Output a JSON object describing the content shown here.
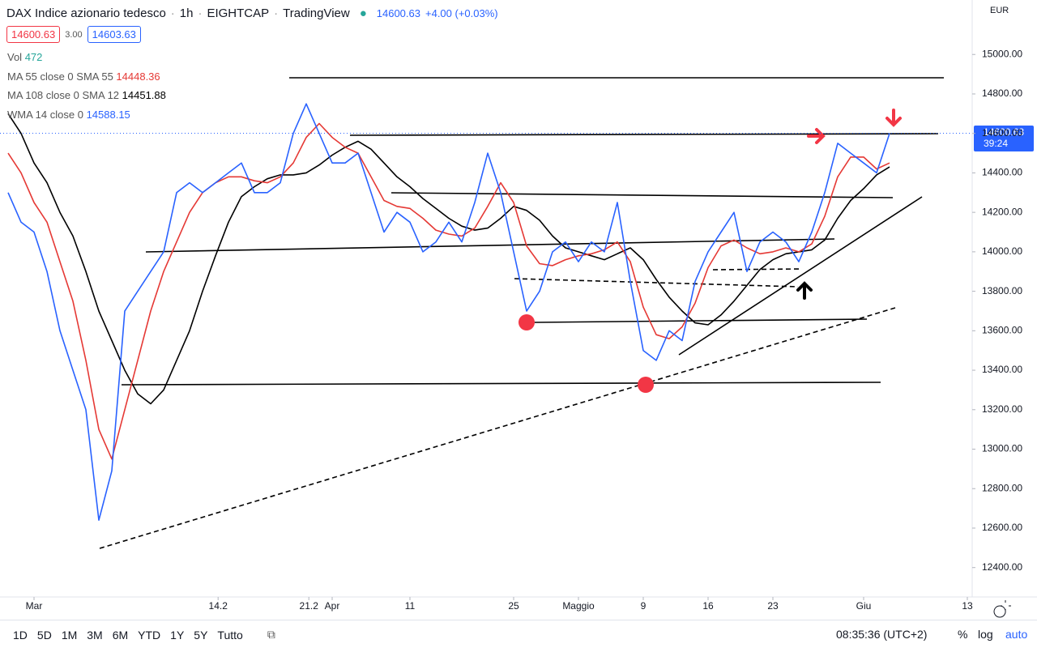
{
  "header": {
    "symbol": "DAX Indice azionario tedesco",
    "interval": "1h",
    "exchange": "EIGHTCAP",
    "source": "TradingView",
    "last": "14600.63",
    "change": "+4.00 (+0.03%)",
    "bid": "14600.63",
    "spread": "3.00",
    "ask": "14603.63",
    "currency": "EUR",
    "price_label": "14600.63",
    "countdown": "39:24"
  },
  "indicators": {
    "volume": {
      "name": "Vol",
      "last": "472"
    }
  },
  "toolbar": {
    "ranges": [
      "1D",
      "5D",
      "1M",
      "3M",
      "6M",
      "YTD",
      "1Y",
      "5Y",
      "Tutto"
    ],
    "clock": "08:35:36 (UTC+2)",
    "percent": "%",
    "log": "log",
    "auto": "auto"
  },
  "chart_data": {
    "type": "line",
    "x": [
      -2,
      -1,
      0,
      1,
      2,
      3,
      4,
      5,
      6,
      7,
      8,
      9,
      10,
      11,
      12,
      13,
      14,
      15,
      16,
      17,
      18,
      19,
      20,
      21,
      22,
      23,
      24,
      25,
      26,
      27,
      28,
      29,
      30,
      31,
      32,
      33,
      34,
      35,
      36,
      37,
      38,
      39,
      40,
      41,
      42,
      43,
      44,
      45,
      46,
      47,
      48,
      49,
      50,
      51,
      52,
      53,
      54,
      55,
      56,
      57,
      58,
      59,
      60,
      61,
      62,
      63,
      64,
      65,
      66
    ],
    "xlim": [
      -2.625,
      72.375
    ],
    "xticks": [
      {
        "value": 0,
        "label": "Mar"
      },
      14.2,
      21.2,
      {
        "value": 23,
        "label": "Apr"
      },
      {
        "value": 29,
        "label": "11"
      },
      {
        "value": 37,
        "label": "25"
      },
      {
        "value": 42,
        "label": "Maggio"
      },
      {
        "value": 47,
        "label": "9"
      },
      {
        "value": 52,
        "label": "16"
      },
      {
        "value": 57,
        "label": "23"
      },
      {
        "value": 64,
        "label": "Giu"
      },
      {
        "value": 72,
        "label": "13"
      }
    ],
    "ylim": [
      12251,
      15276
    ],
    "yticks": [
      {
        "value": 12400,
        "label": "12400.00"
      },
      {
        "value": 12600,
        "label": "12600.00"
      },
      {
        "value": 12800,
        "label": "12800.00"
      },
      {
        "value": 13000,
        "label": "13000.00"
      },
      {
        "value": 13200,
        "label": "13200.00"
      },
      {
        "value": 13400,
        "label": "13400.00"
      },
      {
        "value": 13600,
        "label": "13600.00"
      },
      {
        "value": 13800,
        "label": "13800.00"
      },
      {
        "value": 14000,
        "label": "14000.00"
      },
      {
        "value": 14200,
        "label": "14200.00"
      },
      {
        "value": 14400,
        "label": "14400.00"
      },
      {
        "value": 14600,
        "label": "14600.00"
      },
      {
        "value": 14800,
        "label": "14800.00"
      },
      {
        "value": 15000,
        "label": "15000.00"
      }
    ],
    "current_price": 14600.63,
    "series": [
      {
        "name": "WMA 14 close 0",
        "color": "#2962ff",
        "last_value": "14588.15",
        "values": [
          14300,
          14150,
          14100,
          13900,
          13600,
          13400,
          13200,
          12640,
          12890,
          13700,
          13800,
          13900,
          14000,
          14300,
          14350,
          14300,
          14350,
          14400,
          14450,
          14300,
          14300,
          14350,
          14600,
          14750,
          14600,
          14450,
          14450,
          14500,
          14300,
          14100,
          14200,
          14150,
          14000,
          14050,
          14150,
          14050,
          14250,
          14500,
          14300,
          14000,
          13700,
          13800,
          14000,
          14050,
          13950,
          14050,
          14000,
          14250,
          13850,
          13500,
          13450,
          13600,
          13550,
          13850,
          14000,
          14100,
          14200,
          13900,
          14050,
          14100,
          14050,
          13950,
          14100,
          14300,
          14550,
          14500,
          14450,
          14400,
          14600
        ]
      },
      {
        "name": "MA 55 close 0 SMA 55",
        "color": "#e53935",
        "last_value": "14448.36",
        "values": [
          14500,
          14400,
          14250,
          14150,
          13950,
          13750,
          13450,
          13100,
          12950,
          13200,
          13450,
          13700,
          13900,
          14050,
          14200,
          14300,
          14350,
          14380,
          14380,
          14360,
          14350,
          14380,
          14450,
          14580,
          14650,
          14580,
          14530,
          14500,
          14380,
          14260,
          14230,
          14220,
          14170,
          14110,
          14090,
          14080,
          14120,
          14230,
          14350,
          14250,
          14030,
          13940,
          13930,
          13960,
          13980,
          13990,
          14010,
          14050,
          13950,
          13720,
          13580,
          13560,
          13620,
          13740,
          13920,
          14030,
          14060,
          14020,
          13990,
          14000,
          14020,
          14000,
          14040,
          14180,
          14380,
          14480,
          14480,
          14420,
          14450
        ]
      },
      {
        "name": "MA 108 close 0 SMA 12",
        "color": "#000000",
        "last_value": "14451.88",
        "values": [
          14700,
          14600,
          14450,
          14350,
          14200,
          14080,
          13900,
          13700,
          13550,
          13400,
          13280,
          13230,
          13300,
          13450,
          13600,
          13800,
          13980,
          14150,
          14280,
          14330,
          14370,
          14390,
          14390,
          14400,
          14440,
          14490,
          14530,
          14560,
          14520,
          14450,
          14380,
          14330,
          14270,
          14220,
          14170,
          14130,
          14110,
          14120,
          14170,
          14230,
          14210,
          14160,
          14080,
          14020,
          14000,
          13980,
          13960,
          13990,
          14020,
          13960,
          13860,
          13770,
          13700,
          13640,
          13630,
          13680,
          13750,
          13830,
          13910,
          13960,
          13990,
          14000,
          14010,
          14060,
          14170,
          14260,
          14320,
          14390,
          14430
        ]
      }
    ]
  }
}
